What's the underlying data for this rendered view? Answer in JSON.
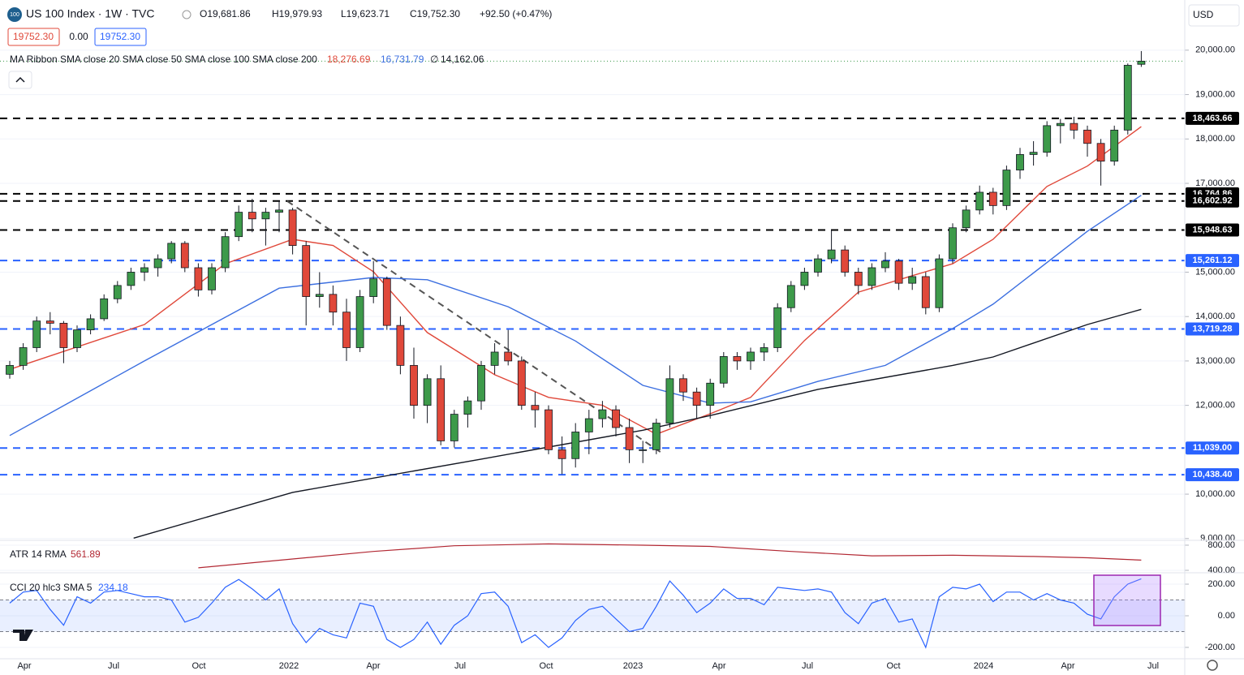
{
  "header": {
    "symbol": "US 100 Index · 1W · TVC",
    "open": "O19,681.86",
    "high": "H19,979.93",
    "low": "L19,623.71",
    "close": "C19,752.30",
    "change": "+92.50 (+0.47%)",
    "badges": [
      "19752.30",
      "0.00",
      "19752.30"
    ],
    "currency": "USD"
  },
  "chart_data": {
    "type": "candlestick",
    "up_color": "#3d9a4a",
    "down_color": "#e0483a",
    "candles": [
      [
        12700,
        13000,
        12600,
        12900
      ],
      [
        12900,
        13400,
        12800,
        13300
      ],
      [
        13300,
        14000,
        13200,
        13900
      ],
      [
        13900,
        14100,
        13600,
        13850
      ],
      [
        13850,
        13900,
        12950,
        13300
      ],
      [
        13300,
        13800,
        13200,
        13700
      ],
      [
        13700,
        14050,
        13600,
        13950
      ],
      [
        13950,
        14500,
        13900,
        14400
      ],
      [
        14400,
        14800,
        14300,
        14700
      ],
      [
        14700,
        15100,
        14600,
        15000
      ],
      [
        15000,
        15200,
        14800,
        15100
      ],
      [
        15100,
        15400,
        14900,
        15300
      ],
      [
        15300,
        15700,
        15200,
        15650
      ],
      [
        15650,
        15700,
        15000,
        15100
      ],
      [
        15100,
        15200,
        14450,
        14600
      ],
      [
        14600,
        15200,
        14500,
        15100
      ],
      [
        15100,
        15900,
        15000,
        15800
      ],
      [
        15800,
        16500,
        15700,
        16350
      ],
      [
        16350,
        16650,
        15900,
        16200
      ],
      [
        16200,
        16450,
        15600,
        16350
      ],
      [
        16350,
        16600,
        15900,
        16400
      ],
      [
        16400,
        16450,
        15400,
        15600
      ],
      [
        15600,
        15700,
        13800,
        14450
      ],
      [
        14450,
        15000,
        14200,
        14500
      ],
      [
        14500,
        14700,
        13800,
        14100
      ],
      [
        14100,
        14400,
        13000,
        13300
      ],
      [
        13300,
        14600,
        13200,
        14450
      ],
      [
        14450,
        15250,
        14300,
        14850
      ],
      [
        14850,
        14900,
        13700,
        13800
      ],
      [
        13800,
        14000,
        12700,
        12900
      ],
      [
        12900,
        13300,
        11700,
        12000
      ],
      [
        12000,
        12700,
        11600,
        12600
      ],
      [
        12600,
        12900,
        11100,
        11200
      ],
      [
        11200,
        11900,
        11050,
        11800
      ],
      [
        11800,
        12200,
        11500,
        12100
      ],
      [
        12100,
        13000,
        11900,
        12900
      ],
      [
        12900,
        13400,
        12700,
        13200
      ],
      [
        13200,
        13700,
        12900,
        13000
      ],
      [
        13000,
        13100,
        11900,
        12000
      ],
      [
        12000,
        12300,
        11500,
        11900
      ],
      [
        11900,
        12000,
        10900,
        11000
      ],
      [
        11000,
        11300,
        10450,
        10800
      ],
      [
        10800,
        11600,
        10600,
        11400
      ],
      [
        11400,
        11900,
        10900,
        11700
      ],
      [
        11700,
        12100,
        11500,
        11900
      ],
      [
        11900,
        12000,
        11300,
        11500
      ],
      [
        11500,
        11700,
        10700,
        11000
      ],
      [
        11000,
        11200,
        10700,
        11000
      ],
      [
        11000,
        11700,
        10900,
        11600
      ],
      [
        11600,
        12900,
        11500,
        12600
      ],
      [
        12600,
        12700,
        12100,
        12300
      ],
      [
        12300,
        12400,
        11700,
        12000
      ],
      [
        12000,
        12600,
        11700,
        12500
      ],
      [
        12500,
        13200,
        12400,
        13100
      ],
      [
        13100,
        13200,
        12800,
        13000
      ],
      [
        13000,
        13300,
        12800,
        13200
      ],
      [
        13200,
        13400,
        13000,
        13300
      ],
      [
        13300,
        14300,
        13200,
        14200
      ],
      [
        14200,
        14800,
        14100,
        14700
      ],
      [
        14700,
        15100,
        14600,
        15000
      ],
      [
        15000,
        15400,
        14900,
        15300
      ],
      [
        15300,
        15950,
        15200,
        15500
      ],
      [
        15500,
        15600,
        14900,
        15000
      ],
      [
        15000,
        15100,
        14500,
        14700
      ],
      [
        14700,
        15200,
        14600,
        15100
      ],
      [
        15100,
        15450,
        15000,
        15250
      ],
      [
        15250,
        15300,
        14600,
        14750
      ],
      [
        14750,
        15100,
        14600,
        14900
      ],
      [
        14900,
        15000,
        14050,
        14200
      ],
      [
        14200,
        15400,
        14100,
        15300
      ],
      [
        15300,
        16100,
        15200,
        16000
      ],
      [
        16000,
        16500,
        15900,
        16400
      ],
      [
        16400,
        16950,
        16300,
        16800
      ],
      [
        16800,
        16900,
        16300,
        16500
      ],
      [
        16500,
        17400,
        16400,
        17300
      ],
      [
        17300,
        17800,
        17100,
        17650
      ],
      [
        17650,
        17950,
        17400,
        17700
      ],
      [
        17700,
        18400,
        17600,
        18300
      ],
      [
        18300,
        18450,
        17900,
        18350
      ],
      [
        18350,
        18500,
        18000,
        18200
      ],
      [
        18200,
        18300,
        17600,
        17900
      ],
      [
        17900,
        18000,
        16950,
        17500
      ],
      [
        17500,
        18300,
        17400,
        18200
      ],
      [
        18200,
        19700,
        18100,
        19659.8
      ],
      [
        19681.86,
        19979.93,
        19623.71,
        19752.3
      ]
    ],
    "ylim": [
      8960,
      21130
    ],
    "yticks": [
      {
        "value": 20000,
        "label": "20,000.00"
      },
      {
        "value": 19000,
        "label": "19,000.00"
      },
      {
        "value": 18000,
        "label": "18,000.00"
      },
      {
        "value": 17000,
        "label": "17,000.00"
      },
      {
        "value": 15000,
        "label": "15,000.00"
      },
      {
        "value": 14000,
        "label": "14,000.00"
      },
      {
        "value": 13000,
        "label": "13,000.00"
      },
      {
        "value": 12000,
        "label": "12,000.00"
      },
      {
        "value": 10000,
        "label": "10,000.00"
      },
      {
        "value": 9000,
        "label": "9,000.00"
      }
    ],
    "x_labels": [
      "Apr",
      "Jul",
      "Oct",
      "2022",
      "Apr",
      "Jul",
      "Oct",
      "2023",
      "Apr",
      "Jul",
      "Oct",
      "2024",
      "Apr",
      "Jul"
    ],
    "ma_legend": "MA Ribbon SMA close 20 SMA close 50 SMA close 100 SMA close 200",
    "ma100_label": "∅",
    "series": [
      {
        "name": "SMA close 20",
        "color": "#e0483a",
        "value_label": "18,276.69",
        "x": [
          0,
          10,
          16,
          21,
          24,
          27,
          31,
          36,
          40,
          44,
          48,
          52,
          55,
          59,
          63,
          67,
          70,
          73,
          77,
          80,
          84
        ],
        "values": [
          12810,
          13820,
          15190,
          15740,
          15600,
          15010,
          13640,
          12690,
          12180,
          12000,
          11350,
          11810,
          12180,
          13460,
          14550,
          14920,
          15190,
          15740,
          16930,
          17390,
          18276.69
        ]
      },
      {
        "name": "SMA close 50",
        "color": "#3c6fe0",
        "value_label": "16,731.79",
        "x": [
          0,
          10,
          20,
          27,
          31,
          37,
          42,
          47,
          52,
          55,
          60,
          65,
          70,
          73,
          80,
          84
        ],
        "values": [
          11320,
          13000,
          14640,
          14880,
          14830,
          14220,
          13450,
          12450,
          12050,
          12080,
          12540,
          12900,
          13730,
          14280,
          15920,
          16731.79
        ]
      },
      {
        "name": "SMA close 200",
        "color": "#131722",
        "value_label": "14,162.06",
        "x": [
          9.2,
          21,
          35,
          47,
          52,
          60,
          70,
          73,
          80,
          84
        ],
        "values": [
          9010,
          10040,
          10790,
          11440,
          11770,
          12360,
          12900,
          13090,
          13820,
          14162.06
        ]
      }
    ],
    "levels": [
      {
        "value": 18463.66,
        "label": "18,463.66",
        "color": "#000000"
      },
      {
        "value": 16764.86,
        "label": "16,764.86",
        "color": "#000000"
      },
      {
        "value": 16602.92,
        "label": "16,602.92",
        "color": "#000000"
      },
      {
        "value": 15948.63,
        "label": "15,948.63",
        "color": "#000000"
      },
      {
        "value": 15261.12,
        "label": "15,261.12",
        "color": "#2962ff"
      },
      {
        "value": 13719.28,
        "label": "13,719.28",
        "color": "#2962ff"
      },
      {
        "value": 11039.0,
        "label": "11,039.00",
        "color": "#2962ff"
      },
      {
        "value": 10438.4,
        "label": "10,438.40",
        "color": "#2962ff"
      }
    ],
    "trendline": {
      "x": [
        20.6,
        48.4
      ],
      "values": [
        16600,
        10930
      ]
    },
    "atr": {
      "label": "ATR 14 RMA",
      "value_label": "561.89",
      "color": "#b22833",
      "x": [
        14,
        21,
        27,
        33,
        40,
        47,
        52,
        58,
        64,
        70,
        76,
        80,
        84
      ],
      "values": [
        440,
        580,
        700,
        790,
        820,
        800,
        780,
        700,
        630,
        640,
        620,
        600,
        561.89
      ],
      "ylim": [
        361,
        877
      ],
      "yticks": [
        {
          "value": 800,
          "label": "800.00"
        },
        {
          "value": 400,
          "label": "400.00"
        }
      ]
    },
    "cci": {
      "label": "CCI 20 hlc3 SMA 5",
      "value_label": "234.18",
      "color": "#2962ff",
      "values": [
        80,
        150,
        160,
        40,
        -60,
        120,
        80,
        150,
        160,
        140,
        120,
        120,
        100,
        -40,
        -10,
        80,
        180,
        230,
        170,
        100,
        170,
        -50,
        -170,
        -80,
        -120,
        -140,
        80,
        60,
        -150,
        -200,
        -150,
        -40,
        -180,
        -60,
        0,
        140,
        150,
        60,
        -170,
        -120,
        -200,
        -140,
        -30,
        40,
        60,
        -20,
        -100,
        -80,
        60,
        220,
        130,
        20,
        80,
        170,
        110,
        110,
        70,
        180,
        170,
        160,
        170,
        150,
        20,
        -50,
        80,
        110,
        -40,
        -20,
        -200,
        120,
        180,
        170,
        200,
        90,
        150,
        150,
        100,
        140,
        100,
        80,
        10,
        -20,
        120,
        200,
        234.18
      ],
      "bands": [
        100,
        -100
      ],
      "ylim": [
        -272,
        272
      ],
      "yticks": [
        {
          "value": 200,
          "label": "200.00"
        },
        {
          "value": 0,
          "label": "0.00"
        },
        {
          "value": -200,
          "label": "-200.00"
        }
      ]
    }
  }
}
